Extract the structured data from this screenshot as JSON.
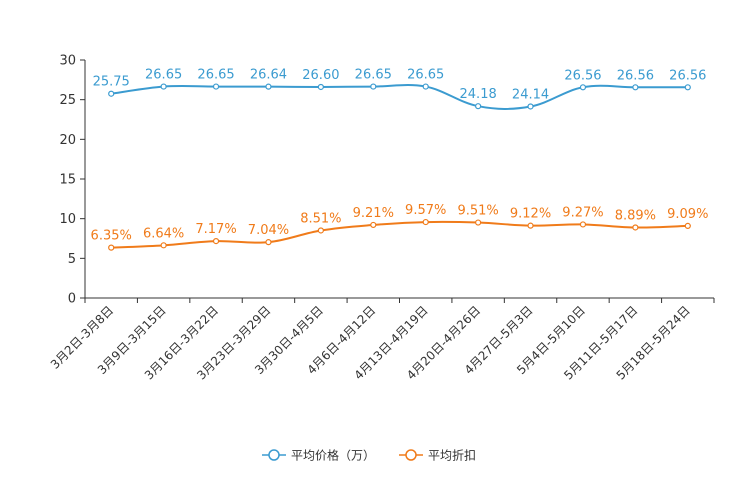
{
  "chart_data": {
    "type": "line",
    "title": "",
    "xlabel": "",
    "ylabel": "",
    "ylim": [
      0,
      30
    ],
    "yticks": [
      "0",
      "5",
      "10",
      "15",
      "20",
      "25",
      "30"
    ],
    "categories": [
      "3月2日-3月8日",
      "3月9日-3月15日",
      "3月16日-3月22日",
      "3月23日-3月29日",
      "3月30日-4月5日",
      "4月6日-4月12日",
      "4月13日-4月19日",
      "4月20日-4月26日",
      "4月27日-5月3日",
      "5月4日-5月10日",
      "5月11日-5月17日",
      "5月18日-5月24日"
    ],
    "series": [
      {
        "name": "平均价格（万）",
        "color": "#3b9bd0",
        "values": [
          25.75,
          26.65,
          26.65,
          26.64,
          26.6,
          26.65,
          26.65,
          24.18,
          24.14,
          26.56,
          26.56,
          26.56
        ],
        "labels": [
          "25.75",
          "26.65",
          "26.65",
          "26.64",
          "26.60",
          "26.65",
          "26.65",
          "24.18",
          "24.14",
          "26.56",
          "26.56",
          "26.56"
        ]
      },
      {
        "name": "平均折扣",
        "color": "#f07b1a",
        "values": [
          6.35,
          6.64,
          7.17,
          7.04,
          8.51,
          9.21,
          9.57,
          9.51,
          9.12,
          9.27,
          8.89,
          9.09
        ],
        "labels": [
          "6.35%",
          "6.64%",
          "7.17%",
          "7.04%",
          "8.51%",
          "9.21%",
          "9.57%",
          "9.51%",
          "9.12%",
          "9.27%",
          "8.89%",
          "9.09%"
        ]
      }
    ],
    "legend_position": "bottom-center"
  }
}
